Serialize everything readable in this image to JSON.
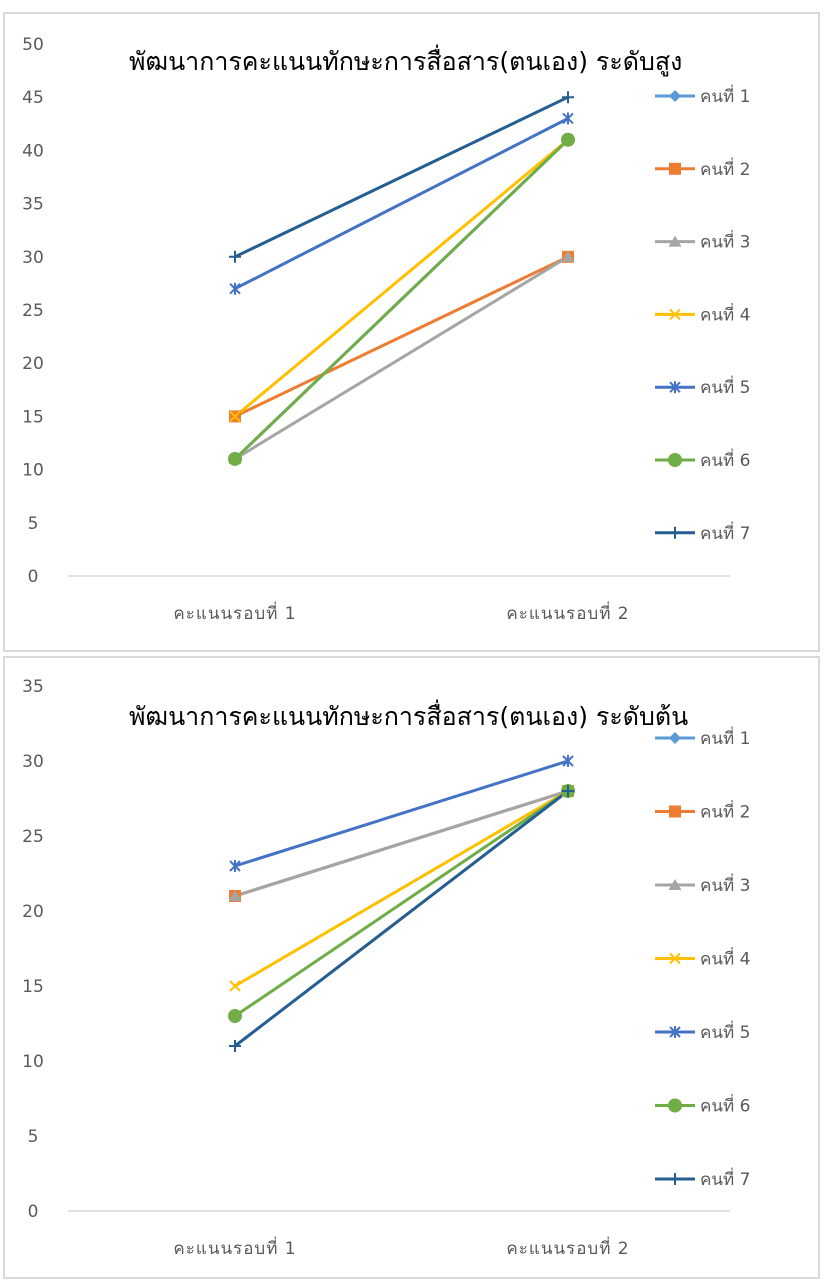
{
  "chart_data": [
    {
      "type": "line",
      "title": "พัฒนาการคะแนนทักษะการสื่อสาร(ตนเอง) ระดับสูง",
      "categories": [
        "คะแนนรอบที่  1",
        "คะแนนรอบที่  2"
      ],
      "ylim": [
        0,
        50
      ],
      "yticks": [
        0,
        5,
        10,
        15,
        20,
        25,
        30,
        35,
        40,
        45,
        50
      ],
      "grid": false,
      "legend_position": "right",
      "series": [
        {
          "name": "คนที่  1",
          "color": "#5b9bd5",
          "marker": "diamond",
          "values": [
            11,
            41
          ]
        },
        {
          "name": "คนที่  2",
          "color": "#ed7d31",
          "marker": "square",
          "values": [
            15,
            30
          ]
        },
        {
          "name": "คนที่  3",
          "color": "#a5a5a5",
          "marker": "triangle",
          "values": [
            11,
            30
          ]
        },
        {
          "name": "คนที่  4",
          "color": "#ffc000",
          "marker": "x",
          "values": [
            15,
            41
          ]
        },
        {
          "name": "คนที่  5",
          "color": "#4472c4",
          "marker": "asterisk",
          "values": [
            27,
            43
          ]
        },
        {
          "name": "คนที่  6",
          "color": "#70ad47",
          "marker": "circle",
          "values": [
            11,
            41
          ]
        },
        {
          "name": "คนที่  7",
          "color": "#255e91",
          "marker": "plus",
          "values": [
            30,
            45
          ]
        }
      ]
    },
    {
      "type": "line",
      "title": "พัฒนาการคะแนนทักษะการสื่อสาร(ตนเอง) ระดับต้น",
      "categories": [
        "คะแนนรอบที่  1",
        "คะแนนรอบที่  2"
      ],
      "ylim": [
        0,
        35
      ],
      "yticks": [
        0,
        5,
        10,
        15,
        20,
        25,
        30,
        35
      ],
      "grid": false,
      "legend_position": "right",
      "series": [
        {
          "name": "คนที่  1",
          "color": "#5b9bd5",
          "marker": "diamond",
          "values": [
            21,
            28
          ]
        },
        {
          "name": "คนที่  2",
          "color": "#ed7d31",
          "marker": "square",
          "values": [
            21,
            28
          ]
        },
        {
          "name": "คนที่  3",
          "color": "#a5a5a5",
          "marker": "triangle",
          "values": [
            21,
            28
          ]
        },
        {
          "name": "คนที่  4",
          "color": "#ffc000",
          "marker": "x",
          "values": [
            15,
            28
          ]
        },
        {
          "name": "คนที่  5",
          "color": "#4472c4",
          "marker": "asterisk",
          "values": [
            23,
            30
          ]
        },
        {
          "name": "คนที่  6",
          "color": "#70ad47",
          "marker": "circle",
          "values": [
            13,
            28
          ]
        },
        {
          "name": "คนที่  7",
          "color": "#255e91",
          "marker": "plus",
          "values": [
            11,
            28
          ]
        }
      ]
    }
  ]
}
